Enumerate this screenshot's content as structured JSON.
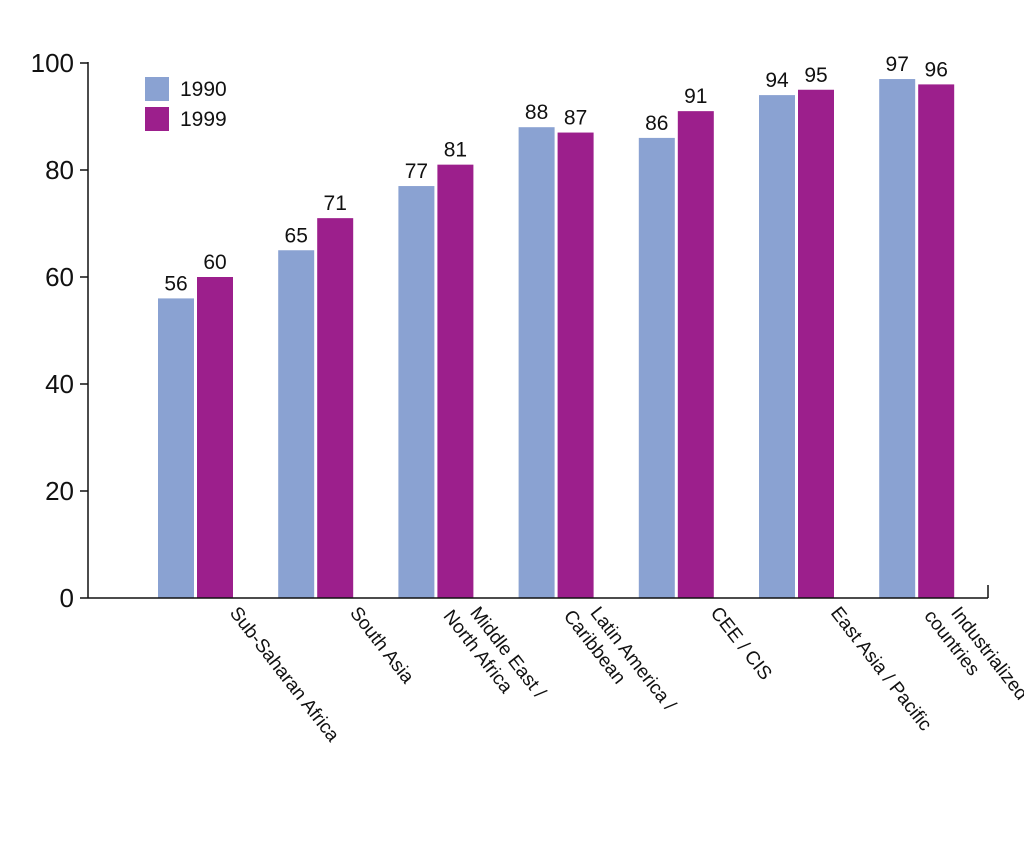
{
  "chart_data": {
    "type": "bar",
    "title": "",
    "xlabel": "",
    "ylabel": "",
    "ylim": [
      0,
      100
    ],
    "yticks": [
      0,
      20,
      40,
      60,
      80,
      100
    ],
    "grid": false,
    "legend_position": "top-left",
    "categories": [
      [
        "Sub-Saharan Africa"
      ],
      [
        "South Asia"
      ],
      [
        "Middle East /",
        "North Africa"
      ],
      [
        "Latin America /",
        "Caribbean"
      ],
      [
        "CEE / CIS"
      ],
      [
        "East Asia / Pacific"
      ],
      [
        "Industrialized",
        "countries"
      ]
    ],
    "series": [
      {
        "name": "1990",
        "color": "#8aa2d2",
        "values": [
          56,
          65,
          77,
          88,
          86,
          94,
          97
        ]
      },
      {
        "name": "1999",
        "color": "#9c1f8c",
        "values": [
          60,
          71,
          81,
          87,
          91,
          95,
          96
        ]
      }
    ]
  }
}
